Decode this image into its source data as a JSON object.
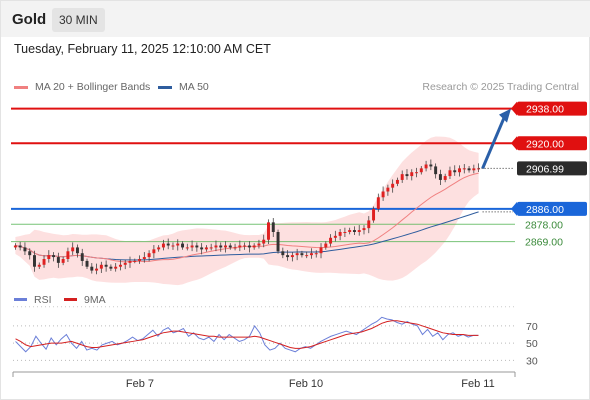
{
  "header": {
    "asset": "Gold",
    "timeframe": "30 MIN"
  },
  "timestamp": "Tuesday, February 11, 2025 12:10:00 AM CET",
  "legend": [
    {
      "label": "MA 20 + Bollinger Bands",
      "color": "#f08080"
    },
    {
      "label": "MA 50",
      "color": "#2f5d9e"
    }
  ],
  "copyright": "Research © 2025 Trading Central",
  "colors": {
    "resistance": "#e01010",
    "support": "#1a66d9",
    "minor": "#55b555",
    "bull": "#e02020",
    "bear": "#333333",
    "bands": "#fde0e0",
    "ma20": "#f08080",
    "ma50": "#2f5d9e"
  },
  "chart_data": [
    {
      "type": "candlestick",
      "x_ticks": [
        "Feb 7",
        "Feb 10",
        "Feb 11"
      ],
      "ylim": [
        2846,
        2944
      ],
      "current_price": 2906.99,
      "levels": [
        {
          "label": "2938.00",
          "value": 2938.0,
          "kind": "resistance"
        },
        {
          "label": "2920.00",
          "value": 2920.0,
          "kind": "resistance"
        },
        {
          "label": "2886.00",
          "value": 2886.0,
          "kind": "support"
        },
        {
          "label": "2878.00",
          "value": 2878.0,
          "kind": "minor"
        },
        {
          "label": "2869.00",
          "value": 2869.0,
          "kind": "minor"
        }
      ],
      "current_label": "2906.99",
      "projection": {
        "from": 2906.99,
        "to": 2938.0
      },
      "close": [
        2867,
        2866,
        2864,
        2862,
        2856,
        2857,
        2860,
        2862,
        2861,
        2858,
        2860,
        2864,
        2866,
        2863,
        2859,
        2856,
        2854,
        2855,
        2857,
        2856,
        2855,
        2856,
        2857,
        2858,
        2859,
        2859,
        2860,
        2861,
        2863,
        2865,
        2866,
        2868,
        2867,
        2867,
        2868,
        2866,
        2866,
        2867,
        2866,
        2865,
        2866,
        2866,
        2867,
        2866,
        2867,
        2866,
        2866,
        2867,
        2867,
        2866,
        2867,
        2868,
        2870,
        2879,
        2874,
        2864,
        2862,
        2861,
        2862,
        2863,
        2862,
        2862,
        2863,
        2863,
        2866,
        2868,
        2871,
        2872,
        2874,
        2874,
        2875,
        2874,
        2875,
        2876,
        2880,
        2886,
        2892,
        2895,
        2897,
        2899,
        2901,
        2904,
        2903,
        2905,
        2905,
        2907,
        2909,
        2908,
        2904,
        2901,
        2903,
        2906,
        2905,
        2907,
        2907,
        2906,
        2907,
        2907
      ]
    },
    {
      "type": "line",
      "title": "",
      "ylim": [
        20,
        85
      ],
      "y_ticks": [
        70,
        50,
        30
      ],
      "series": [
        {
          "name": "RSI",
          "color": "#6b7fd8",
          "values": [
            52,
            46,
            40,
            46,
            58,
            50,
            43,
            56,
            48,
            55,
            60,
            50,
            44,
            52,
            42,
            44,
            42,
            48,
            50,
            52,
            48,
            50,
            53,
            57,
            53,
            55,
            60,
            65,
            58,
            65,
            68,
            62,
            64,
            67,
            58,
            62,
            56,
            54,
            57,
            52,
            60,
            54,
            60,
            56,
            52,
            54,
            58,
            70,
            62,
            48,
            42,
            44,
            50,
            44,
            42,
            40,
            44,
            46,
            44,
            48,
            52,
            55,
            58,
            60,
            62,
            64,
            62,
            60,
            64,
            68,
            72,
            75,
            80,
            78,
            77,
            74,
            72,
            75,
            72,
            70,
            60,
            66,
            58,
            62,
            54,
            60,
            62,
            58,
            60,
            57,
            59,
            59
          ]
        },
        {
          "name": "9MA",
          "color": "#d42020",
          "values": [
            55,
            52,
            48,
            46,
            47,
            48,
            49,
            50,
            50,
            50,
            51,
            52,
            50,
            48,
            46,
            45,
            45,
            46,
            47,
            48,
            49,
            50,
            51,
            52,
            53,
            54,
            56,
            58,
            60,
            62,
            63,
            64,
            64,
            63,
            62,
            61,
            60,
            59,
            58,
            58,
            57,
            57,
            57,
            57,
            57,
            57,
            57,
            58,
            57,
            55,
            53,
            51,
            49,
            47,
            45,
            44,
            44,
            45,
            46,
            48,
            50,
            52,
            54,
            56,
            58,
            60,
            61,
            62,
            63,
            65,
            67,
            70,
            73,
            75,
            76,
            76,
            75,
            74,
            73,
            72,
            70,
            68,
            66,
            64,
            62,
            61,
            60,
            60,
            60,
            59,
            59,
            59
          ]
        }
      ]
    }
  ]
}
